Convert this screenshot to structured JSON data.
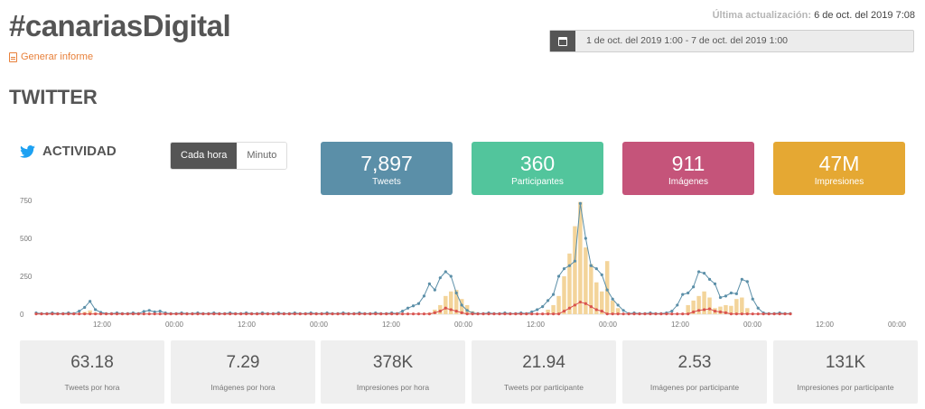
{
  "header": {
    "title": "#canariasDigital",
    "report_link": "Generar informe",
    "updated_label": "Última actualización:",
    "updated_value": "6 de oct. del 2019 7:08",
    "date_range": "1 de oct. del 2019 1:00 - 7 de oct. del 2019 1:00"
  },
  "section_title": "TWITTER",
  "activity": {
    "label": "ACTIVIDAD",
    "toggle": [
      "Cada hora",
      "Minuto"
    ],
    "active_toggle": "Cada hora"
  },
  "stats": [
    {
      "value": "7,897",
      "label": "Tweets",
      "color": "#5b8fa8"
    },
    {
      "value": "360",
      "label": "Participantes",
      "color": "#52c59c"
    },
    {
      "value": "911",
      "label": "Imágenes",
      "color": "#c5547a"
    },
    {
      "value": "47M",
      "label": "Impresiones",
      "color": "#e5a833"
    }
  ],
  "chart_data": {
    "type": "bar",
    "y_ticks": [
      "750",
      "500",
      "250",
      "0"
    ],
    "x_ticks": [
      "12:00",
      "00:00",
      "12:00",
      "00:00",
      "12:00",
      "00:00",
      "12:00",
      "00:00",
      "12:00",
      "00:00",
      "12:00",
      "00:00"
    ],
    "ylim": [
      0,
      750
    ],
    "grid": false,
    "series": [
      {
        "kind": "bar",
        "color": "#f3d49a",
        "values": [
          0,
          0,
          0,
          0,
          0,
          0,
          0,
          0,
          0,
          0,
          0,
          0,
          0,
          0,
          0,
          0,
          0,
          0,
          0,
          0,
          0,
          0,
          0,
          0,
          0,
          0,
          0,
          0,
          0,
          0,
          0,
          0,
          0,
          0,
          0,
          0,
          0,
          0,
          0,
          0,
          0,
          0,
          0,
          0,
          0,
          0,
          0,
          0,
          0,
          0,
          0,
          0,
          0,
          0,
          0,
          0,
          0,
          0,
          0,
          0,
          0,
          0,
          0,
          0,
          0,
          0,
          0,
          0,
          0,
          0,
          0,
          0,
          0,
          0,
          0,
          0,
          0,
          0,
          0,
          0,
          0,
          0,
          0,
          0,
          0,
          0,
          0,
          0,
          0,
          0,
          0,
          0,
          0,
          0,
          0,
          0,
          0,
          0,
          0,
          0,
          0,
          0,
          0,
          0,
          0,
          0,
          0,
          0,
          0,
          0,
          0,
          0,
          0,
          0,
          0,
          0,
          0,
          0,
          0,
          0,
          0,
          0,
          0,
          0,
          0,
          0,
          0,
          0,
          0,
          0,
          0,
          0,
          0,
          0,
          0,
          0,
          0,
          0,
          0,
          0,
          0,
          0,
          0,
          0,
          0,
          0,
          0,
          0,
          0,
          0,
          0,
          0,
          0,
          0
        ]
      },
      {
        "kind": "line",
        "color": "#5b8fa8",
        "values": []
      },
      {
        "kind": "line",
        "color": "#d9534f",
        "values": []
      }
    ]
  },
  "metrics": [
    {
      "value": "63.18",
      "label": "Tweets por hora"
    },
    {
      "value": "7.29",
      "label": "Imágenes por hora"
    },
    {
      "value": "378K",
      "label": "Impresiones por hora"
    },
    {
      "value": "21.94",
      "label": "Tweets por participante"
    },
    {
      "value": "2.53",
      "label": "Imágenes por participante"
    },
    {
      "value": "131K",
      "label": "Impresiones por participante"
    }
  ]
}
